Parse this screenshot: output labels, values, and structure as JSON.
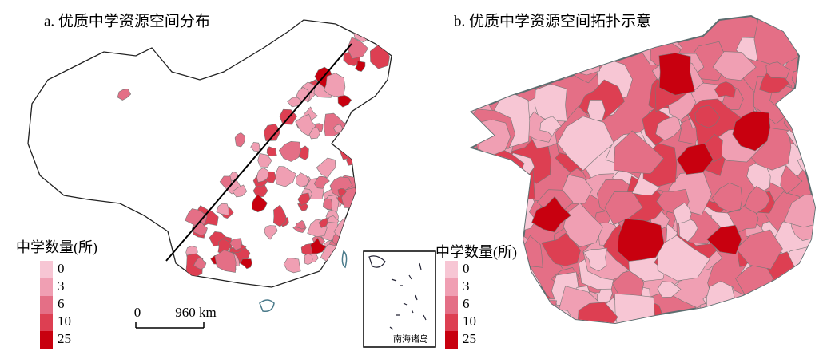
{
  "panels": [
    {
      "title": "a. 优质中学资源空间分布",
      "legend": {
        "title": "中学数量(所)",
        "labels": [
          "0",
          "3",
          "6",
          "10",
          "25"
        ]
      },
      "scale_bar": {
        "labels": [
          "0",
          "960 km"
        ]
      },
      "inset_label": "南海诸岛"
    },
    {
      "title": "b. 优质中学资源空间拓扑示意",
      "legend": {
        "title": "中学数量(所)",
        "labels": [
          "0",
          "3",
          "6",
          "10",
          "25"
        ]
      }
    }
  ]
}
